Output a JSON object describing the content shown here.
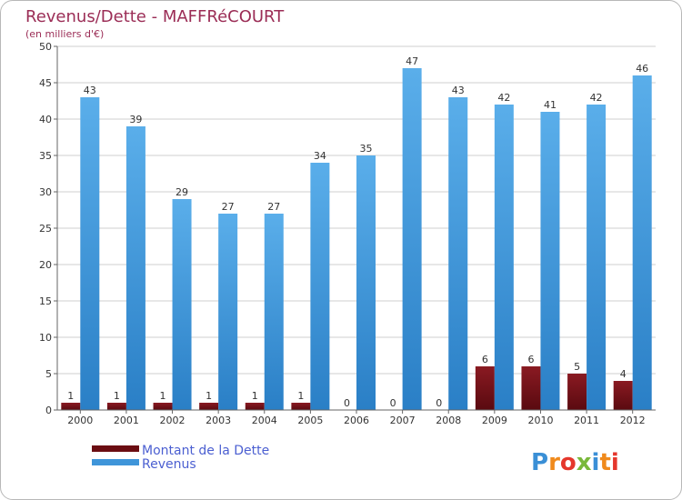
{
  "chart_data": {
    "type": "bar",
    "title": "Revenus/Dette - MAFFRéCOURT",
    "subtitle": "(en milliers d'€)",
    "categories": [
      "2000",
      "2001",
      "2002",
      "2003",
      "2004",
      "2005",
      "2006",
      "2007",
      "2008",
      "2009",
      "2010",
      "2011",
      "2012"
    ],
    "series": [
      {
        "name": "Montant de la Dette",
        "color": "#6b0d12",
        "values": [
          1,
          1,
          1,
          1,
          1,
          1,
          0,
          0,
          0,
          6,
          6,
          5,
          4
        ]
      },
      {
        "name": "Revenus",
        "color": "#3f95d9",
        "values": [
          43,
          39,
          29,
          27,
          27,
          34,
          35,
          47,
          43,
          42,
          41,
          42,
          46
        ]
      }
    ],
    "ylim": [
      0,
      50
    ],
    "yticks": [
      0,
      5,
      10,
      15,
      20,
      25,
      30,
      35,
      40,
      45,
      50
    ],
    "grid": true,
    "legend_position": "bottom-left"
  },
  "watermark": "Proxiti"
}
